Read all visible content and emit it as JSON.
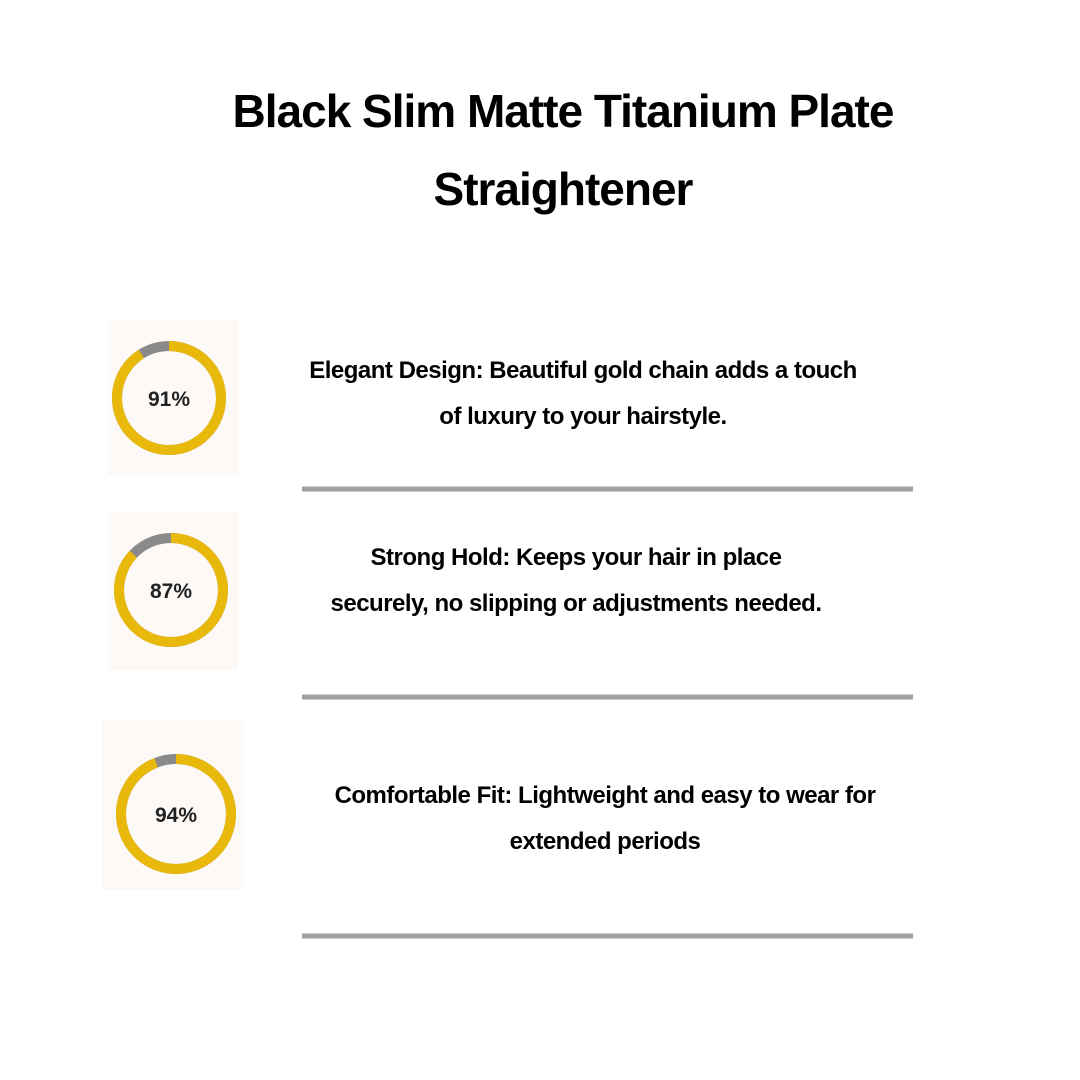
{
  "header": {
    "title": "Black Slim Matte Titanium Plate Straightener"
  },
  "features": [
    {
      "percent": 91,
      "percent_label": "91%",
      "text": "Elegant Design: Beautiful gold chain adds a touch of luxury to your hairstyle."
    },
    {
      "percent": 87,
      "percent_label": "87%",
      "text": "Strong Hold: Keeps your hair in place securely, no slipping or adjustments needed."
    },
    {
      "percent": 94,
      "percent_label": "94%",
      "text": "Comfortable Fit: Lightweight and easy to wear for extended periods"
    }
  ]
}
